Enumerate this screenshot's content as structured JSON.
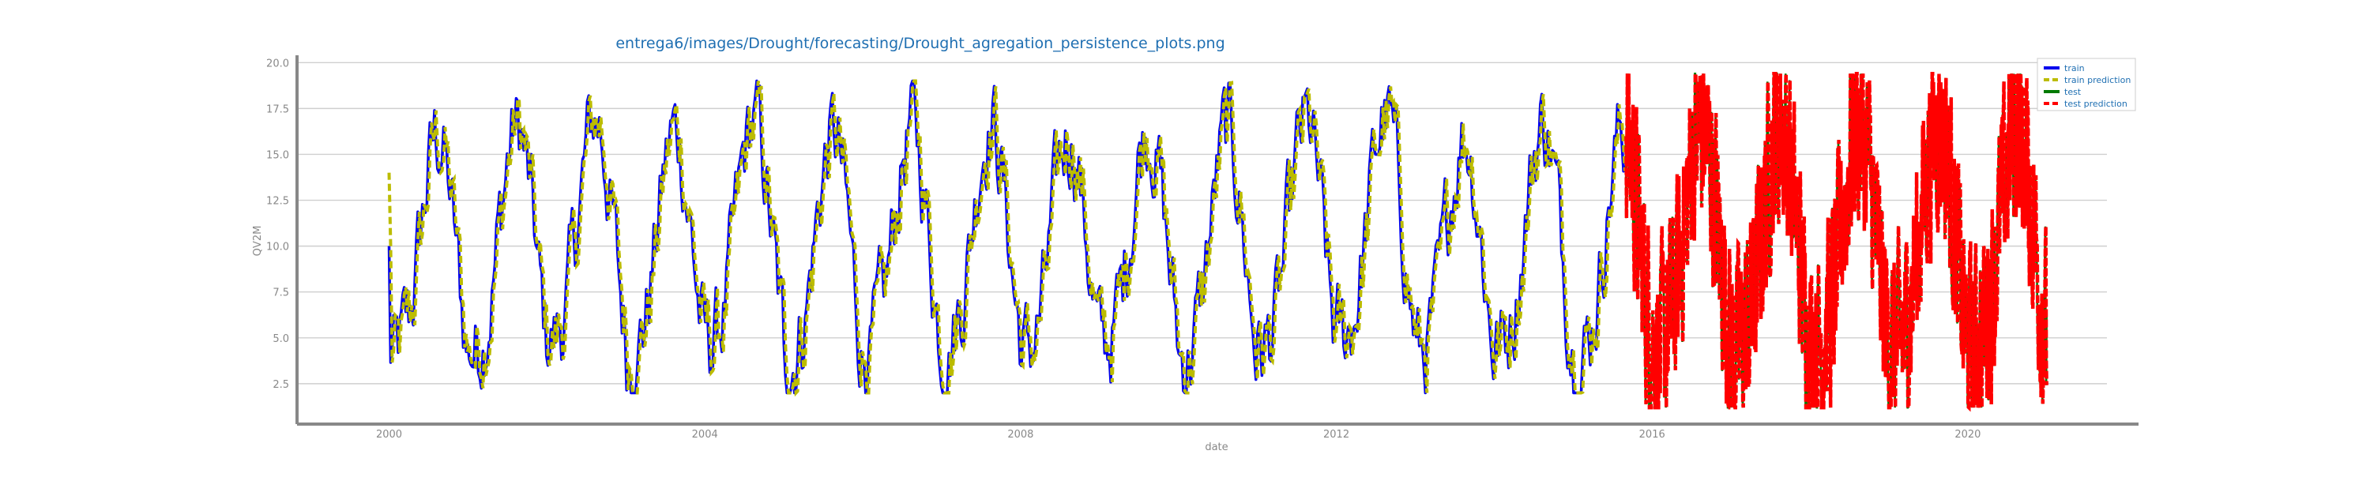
{
  "chart_data": {
    "type": "line",
    "title": "entrega6/images/Drought/forecasting/Drought_agregation_persistence_plots.png",
    "xlabel": "date",
    "ylabel": "QV2M",
    "x_range": [
      "1998-11-01",
      "2022-03-01"
    ],
    "ylim": [
      0.3,
      20.4
    ],
    "x_ticks": [
      "2000",
      "2004",
      "2008",
      "2012",
      "2016",
      "2020"
    ],
    "y_ticks": [
      "2.5",
      "5.0",
      "7.5",
      "10.0",
      "12.5",
      "15.0",
      "17.5",
      "20.0"
    ],
    "grid": "horizontal",
    "legend_position": "top-right",
    "colors": {
      "train": "#0000ee",
      "train_prediction": "#bcbc00",
      "test": "#007a00",
      "test_prediction": "#ff0000",
      "title": "#1f6fb2",
      "axis": "#888888",
      "grid": "#cfcfcf"
    },
    "series": [
      {
        "name": "train",
        "style": "solid",
        "x_start": "2000-01-01",
        "x_end": "2015-08-31",
        "seasonal_mean_by_month": [
          4.6,
          4.4,
          5.1,
          6.4,
          8.7,
          11.7,
          14.6,
          16.4,
          16.3,
          14.1,
          10.9,
          7.3
        ],
        "value_range": [
          2.0,
          19.0
        ]
      },
      {
        "name": "train prediction",
        "style": "dashed",
        "x_start": "2000-01-01",
        "x_end": "2015-08-31",
        "first_value": 14.0,
        "value_range": [
          2.0,
          19.0
        ]
      },
      {
        "name": "test",
        "style": "solid",
        "x_start": "2015-09-01",
        "x_end": "2020-12-31",
        "seasonal_mean_by_month": [
          4.6,
          4.4,
          5.1,
          6.4,
          8.7,
          11.7,
          14.6,
          16.4,
          16.3,
          14.1,
          10.9,
          7.3
        ],
        "value_range": [
          1.2,
          19.4
        ]
      },
      {
        "name": "test prediction",
        "style": "dashed",
        "x_start": "2015-09-01",
        "x_end": "2020-12-31",
        "value_range": [
          1.2,
          19.4
        ]
      }
    ]
  }
}
